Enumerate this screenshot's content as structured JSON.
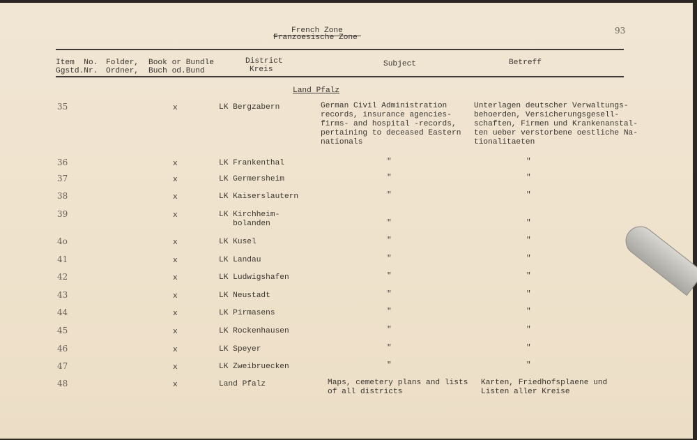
{
  "header": {
    "title_en": "French Zone",
    "title_de": "Franzoesische Zone",
    "page_number": "93"
  },
  "columns": {
    "item": [
      "Item  No.",
      "Ggstd.Nr."
    ],
    "folder": [
      "Folder,",
      "Ordner,"
    ],
    "book": [
      "Book or Bundle",
      "Buch od.Bund"
    ],
    "district": [
      "District",
      "Kreis"
    ],
    "subject": "Subject",
    "betreff": "Betreff"
  },
  "section": "Land Pfalz",
  "rows": [
    {
      "item": "35",
      "mark": "x",
      "district": "LK Bergzabern",
      "subject": "German Civil Administration\nrecords, insurance agencies-\nfirms- and hospital -records,\npertaining to deceased Eastern\nnationals",
      "betreff": "Unterlagen deutscher Verwaltungs-\nbehoerden, Versicherungsgesell-\nschaften, Firmen und Krankenanstal-\nten ueber verstorbene oestliche Na-\ntionalitaeten"
    },
    {
      "item": "36",
      "mark": "x",
      "district": "LK Frankenthal",
      "subject": "\"",
      "betreff": "\""
    },
    {
      "item": "37",
      "mark": "x",
      "district": "LK Germersheim",
      "subject": "\"",
      "betreff": "\""
    },
    {
      "item": "38",
      "mark": "x",
      "district": "LK Kaiserslautern",
      "subject": "\"",
      "betreff": "\""
    },
    {
      "item": "39",
      "mark": "x",
      "district": "LK Kirchheim-\n   bolanden",
      "subject": "\"",
      "betreff": "\""
    },
    {
      "item": "4o",
      "mark": "x",
      "district": "LK Kusel",
      "subject": "\"",
      "betreff": "\""
    },
    {
      "item": "41",
      "mark": "x",
      "district": "LK Landau",
      "subject": "\"",
      "betreff": "\""
    },
    {
      "item": "42",
      "mark": "x",
      "district": "LK Ludwigshafen",
      "subject": "\"",
      "betreff": "\""
    },
    {
      "item": "43",
      "mark": "x",
      "district": "LK Neustadt",
      "subject": "\"",
      "betreff": "\""
    },
    {
      "item": "44",
      "mark": "x",
      "district": "LK Pirmasens",
      "subject": "\"",
      "betreff": "\""
    },
    {
      "item": "45",
      "mark": "x",
      "district": "LK Rockenhausen",
      "subject": "\"",
      "betreff": "\""
    },
    {
      "item": "46",
      "mark": "x",
      "district": "LK Speyer",
      "subject": "\"",
      "betreff": "\""
    },
    {
      "item": "47",
      "mark": "x",
      "district": "LK Zweibruecken",
      "subject": "\"",
      "betreff": "\""
    },
    {
      "item": "48",
      "mark": "x",
      "district": "Land Pfalz",
      "subject": "Maps, cemetery plans and lists\nof all districts",
      "betreff": "Karten, Friedhofsplaene und\nListen aller Kreise"
    }
  ]
}
